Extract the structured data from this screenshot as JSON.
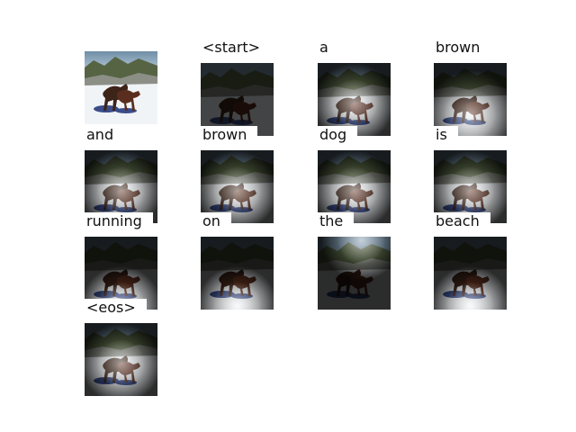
{
  "figure": {
    "words": [
      "<start>",
      "a",
      "brown",
      "and",
      "brown",
      "dog",
      "is",
      "running",
      "on",
      "the",
      "beach",
      "<eos>"
    ],
    "attention_focus": [
      "none",
      "center",
      "center-bottom",
      "center",
      "center",
      "center",
      "center",
      "bottom",
      "bottom",
      "top",
      "bottom",
      "center"
    ],
    "colors": {
      "sky": "#5a7a92",
      "snow": "#eef2f6",
      "trees": "#4c5a38",
      "dog": "#3d2418",
      "shadow": "#2f3d78"
    }
  }
}
